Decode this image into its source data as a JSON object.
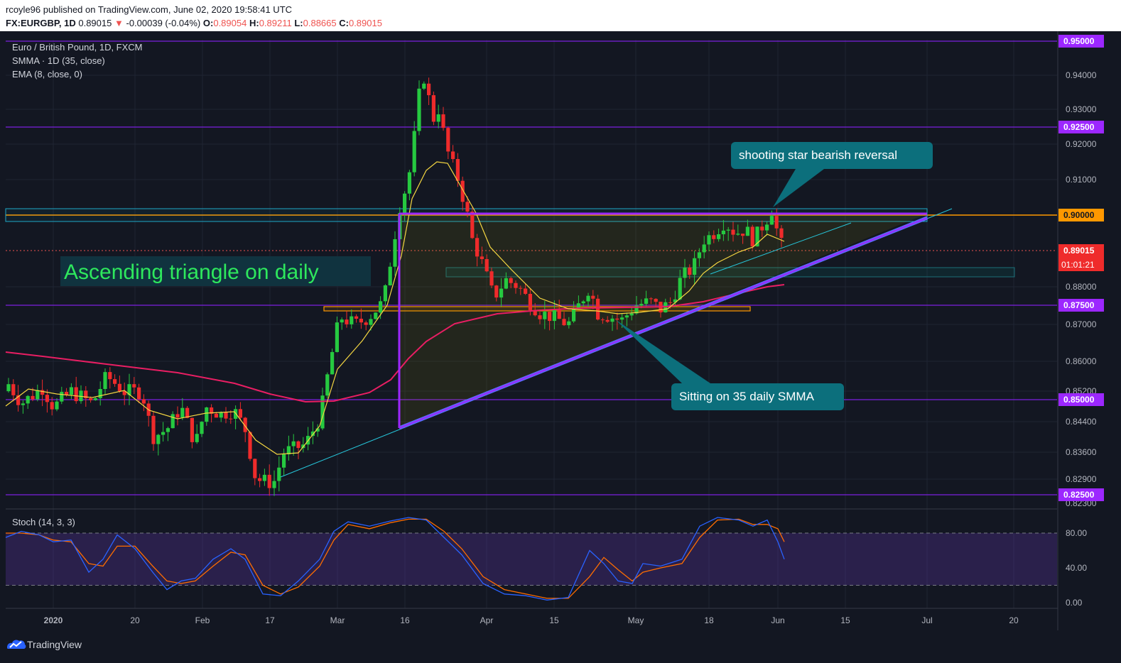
{
  "header": {
    "published": "rcoyle96 published on TradingView.com, June 02, 2020 19:58:41 UTC",
    "symbol": "FX:EURGBP, 1D",
    "last": "0.89015",
    "arrow": "▼",
    "change": "-0.00039 (-0.04%)",
    "o_label": "O:",
    "o": "0.89054",
    "h_label": "H:",
    "h": "0.89211",
    "l_label": "L:",
    "l": "0.88665",
    "c_label": "C:",
    "c": "0.89015"
  },
  "legend": {
    "title": "Euro / British Pound, 1D, FXCM",
    "smma": "SMMA · 1D (35, close)",
    "ema": "EMA (8, close, 0)",
    "stoch": "Stoch (14, 3, 3)"
  },
  "annotations": {
    "triangle_text": "Ascending triangle on daily",
    "shooting_star": "shooting star bearish reversal",
    "smma_note": "Sitting on 35 daily SMMA"
  },
  "price_axis": {
    "ticks": [
      "0.94000",
      "0.93000",
      "0.92000",
      "0.91000",
      "0.88000",
      "0.87000",
      "0.86000",
      "0.85200",
      "0.84400",
      "0.83600",
      "0.82900",
      "0.82300"
    ],
    "level_labels": [
      "0.95000",
      "0.92500",
      "0.90000",
      "0.87500",
      "0.85000",
      "0.82500"
    ],
    "last_price": "0.89015",
    "countdown": "01:01:21"
  },
  "stoch_axis": {
    "ticks": [
      "80.00",
      "40.00",
      "0.00"
    ]
  },
  "time_axis": {
    "labels": [
      "2020",
      "20",
      "Feb",
      "17",
      "Mar",
      "16",
      "Apr",
      "15",
      "May",
      "18",
      "Jun",
      "15",
      "Jul",
      "20"
    ]
  },
  "footer": {
    "brand": "TradingView"
  },
  "colors": {
    "background": "#131722",
    "up": "#26c940",
    "down": "#ef2b2b",
    "level": "#7b1fe0",
    "resistance": "#ff9800",
    "smma": "#e91e63",
    "ema": "#f5d742",
    "stoch_k": "#2962ff",
    "stoch_d": "#ff6d00"
  },
  "chart_data": {
    "type": "candlestick",
    "title": "Euro / British Pound, 1D, FXCM",
    "symbol": "FX:EURGBP",
    "timeframe": "1D",
    "ylim": [
      0.8215,
      0.9505
    ],
    "horizontal_levels": [
      0.95,
      0.925,
      0.9,
      0.875,
      0.85,
      0.825
    ],
    "resistance": 0.9,
    "ohlc_sample": [
      {
        "date": "Dec 23",
        "close": 0.855
      },
      {
        "date": "Jan 02",
        "close": 0.848
      },
      {
        "date": "Jan 20",
        "close": 0.852
      },
      {
        "date": "Feb 10",
        "close": 0.847
      },
      {
        "date": "Feb 18",
        "close": 0.828
      },
      {
        "date": "Mar 02",
        "close": 0.872
      },
      {
        "date": "Mar 13",
        "close": 0.902
      },
      {
        "date": "Mar 19",
        "close": 0.938
      },
      {
        "date": "Mar 24",
        "close": 0.916
      },
      {
        "date": "Apr 01",
        "close": 0.888
      },
      {
        "date": "Apr 15",
        "close": 0.872
      },
      {
        "date": "May 01",
        "close": 0.869
      },
      {
        "date": "May 14",
        "close": 0.882
      },
      {
        "date": "May 22",
        "close": 0.895
      },
      {
        "date": "May 29",
        "close": 0.899
      },
      {
        "date": "Jun 02",
        "open": 0.89054,
        "high": 0.89211,
        "low": 0.88665,
        "close": 0.89015
      }
    ],
    "indicators": [
      "SMMA (35, close)",
      "EMA (8, close, 0)",
      "Stoch (14, 3, 3)"
    ],
    "stoch_ylim": [
      0,
      100
    ]
  }
}
